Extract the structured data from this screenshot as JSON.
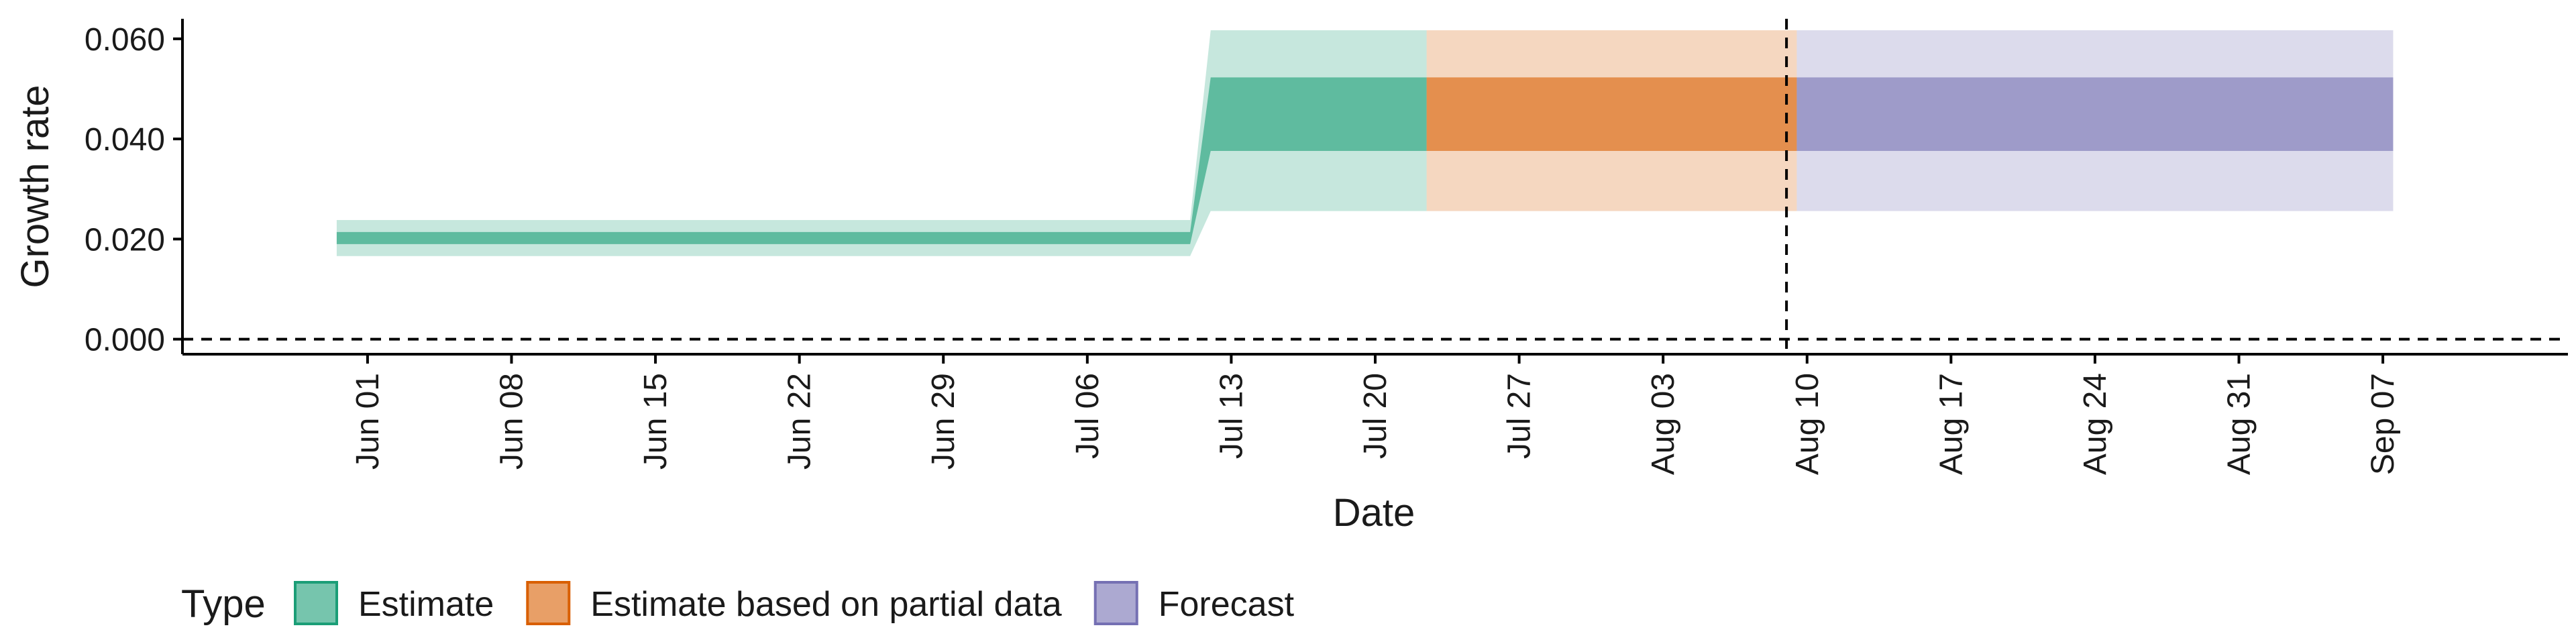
{
  "chart_data": {
    "type": "area",
    "xlabel": "Date",
    "ylabel": "Growth rate",
    "xlim": [
      "2021-05-23",
      "2021-09-16"
    ],
    "ylim": [
      -0.003,
      0.064
    ],
    "y_ticks": [
      0.0,
      0.02,
      0.04,
      0.06
    ],
    "y_tick_labels": [
      "0.000",
      "0.020",
      "0.040",
      "0.060"
    ],
    "x_ticks": [
      "2021-06-01",
      "2021-06-08",
      "2021-06-15",
      "2021-06-22",
      "2021-06-29",
      "2021-07-06",
      "2021-07-13",
      "2021-07-20",
      "2021-07-27",
      "2021-08-03",
      "2021-08-10",
      "2021-08-17",
      "2021-08-24",
      "2021-08-31",
      "2021-09-07"
    ],
    "x_tick_labels": [
      "Jun 01",
      "Jun 08",
      "Jun 15",
      "Jun 22",
      "Jun 29",
      "Jul 06",
      "Jul 13",
      "Jul 20",
      "Jul 27",
      "Aug 03",
      "Aug 10",
      "Aug 17",
      "Aug 24",
      "Aug 31",
      "Sep 07"
    ],
    "hline_y": 0,
    "vline_x": "2021-08-09",
    "grid": false,
    "legend_position": "bottom-left",
    "legend_title": "Type",
    "series": [
      {
        "name": "Estimate",
        "color": "#1b9e77",
        "points": [
          {
            "date": "2021-05-31",
            "lo90": 0.0166,
            "lo50": 0.019,
            "hi50": 0.0214,
            "hi90": 0.0238
          },
          {
            "date": "2021-07-11",
            "lo90": 0.0166,
            "lo50": 0.019,
            "hi50": 0.0214,
            "hi90": 0.0238
          },
          {
            "date": "2021-07-12",
            "lo90": 0.0256,
            "lo50": 0.0376,
            "hi50": 0.0523,
            "hi90": 0.0617
          },
          {
            "date": "2021-07-22",
            "lo90": 0.0256,
            "lo50": 0.0376,
            "hi50": 0.0523,
            "hi90": 0.0617
          }
        ]
      },
      {
        "name": "Estimate based on partial data",
        "color": "#d95f02",
        "points": [
          {
            "date": "2021-07-23",
            "lo90": 0.0256,
            "lo50": 0.0376,
            "hi50": 0.0523,
            "hi90": 0.0617
          },
          {
            "date": "2021-08-09",
            "lo90": 0.0256,
            "lo50": 0.0376,
            "hi50": 0.0523,
            "hi90": 0.0617
          }
        ]
      },
      {
        "name": "Forecast",
        "color": "#7570b3",
        "points": [
          {
            "date": "2021-08-10",
            "lo90": 0.0256,
            "lo50": 0.0376,
            "hi50": 0.0523,
            "hi90": 0.0617
          },
          {
            "date": "2021-09-07",
            "lo90": 0.0256,
            "lo50": 0.0376,
            "hi50": 0.0523,
            "hi90": 0.0617
          }
        ]
      }
    ]
  }
}
